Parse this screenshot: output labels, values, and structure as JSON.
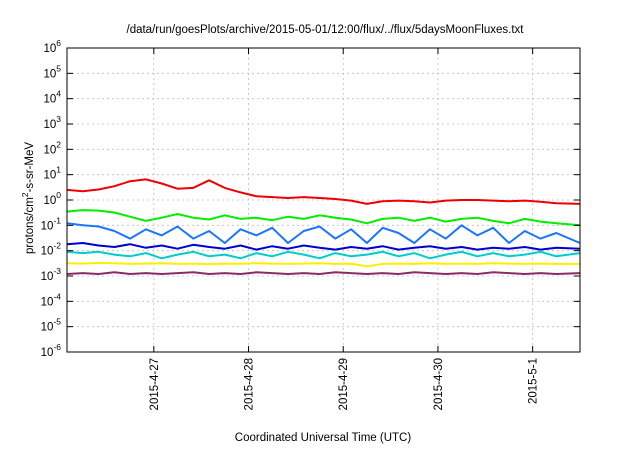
{
  "chart_data": {
    "type": "line",
    "title": "/data/run/goesPlots/archive/2015-05-01/12:00/flux/../flux/5daysMoonFluxes.txt",
    "xlabel": "Coordinated Universal Time (UTC)",
    "ylabel_parts": [
      "protons/cm",
      "2",
      "-s-sr-MeV"
    ],
    "y_scale": "log",
    "ylim": [
      1e-06,
      1000000.0
    ],
    "y_ticks": [
      {
        "base": "10",
        "exp": "-6"
      },
      {
        "base": "10",
        "exp": "-5"
      },
      {
        "base": "10",
        "exp": "-4"
      },
      {
        "base": "10",
        "exp": "-3"
      },
      {
        "base": "10",
        "exp": "-2"
      },
      {
        "base": "10",
        "exp": "-1"
      },
      {
        "base": "10",
        "exp": "0"
      },
      {
        "base": "10",
        "exp": "1"
      },
      {
        "base": "10",
        "exp": "2"
      },
      {
        "base": "10",
        "exp": "3"
      },
      {
        "base": "10",
        "exp": "4"
      },
      {
        "base": "10",
        "exp": "5"
      },
      {
        "base": "10",
        "exp": "6"
      }
    ],
    "x_range": [
      "2015-04-26 02:00",
      "2015-05-01 12:00"
    ],
    "x_ticks": [
      "2015-4-27",
      "2015-4-28",
      "2015-4-29",
      "2015-4-30",
      "2015-5-1"
    ],
    "grid": true,
    "series": [
      {
        "color": "#ee0000",
        "x": [
          "2015-04-26 02:00",
          "2015-04-26 06:00",
          "2015-04-26 10:00",
          "2015-04-26 14:00",
          "2015-04-26 18:00",
          "2015-04-26 22:00",
          "2015-04-27 02:00",
          "2015-04-27 06:00",
          "2015-04-27 10:00",
          "2015-04-27 14:00",
          "2015-04-27 18:00",
          "2015-04-27 22:00",
          "2015-04-28 02:00",
          "2015-04-28 06:00",
          "2015-04-28 10:00",
          "2015-04-28 14:00",
          "2015-04-28 18:00",
          "2015-04-28 22:00",
          "2015-04-29 02:00",
          "2015-04-29 06:00",
          "2015-04-29 10:00",
          "2015-04-29 14:00",
          "2015-04-29 18:00",
          "2015-04-29 22:00",
          "2015-04-30 02:00",
          "2015-04-30 06:00",
          "2015-04-30 10:00",
          "2015-04-30 14:00",
          "2015-04-30 18:00",
          "2015-04-30 22:00",
          "2015-05-01 02:00",
          "2015-05-01 06:00",
          "2015-05-01 12:00"
        ],
        "y": [
          2.5,
          2.2,
          2.6,
          3.5,
          5.5,
          6.5,
          4.5,
          2.8,
          3.0,
          6.0,
          3.0,
          2.0,
          1.4,
          1.3,
          1.2,
          1.3,
          1.2,
          1.1,
          0.95,
          0.7,
          0.9,
          0.95,
          0.9,
          0.8,
          0.95,
          1.0,
          1.0,
          0.95,
          0.9,
          0.95,
          0.85,
          0.75,
          0.7
        ]
      },
      {
        "color": "#00ee00",
        "x": [
          "2015-04-26 02:00",
          "2015-04-26 06:00",
          "2015-04-26 10:00",
          "2015-04-26 14:00",
          "2015-04-26 18:00",
          "2015-04-26 22:00",
          "2015-04-27 02:00",
          "2015-04-27 06:00",
          "2015-04-27 10:00",
          "2015-04-27 14:00",
          "2015-04-27 18:00",
          "2015-04-27 22:00",
          "2015-04-28 02:00",
          "2015-04-28 06:00",
          "2015-04-28 10:00",
          "2015-04-28 14:00",
          "2015-04-28 18:00",
          "2015-04-28 22:00",
          "2015-04-29 02:00",
          "2015-04-29 06:00",
          "2015-04-29 10:00",
          "2015-04-29 14:00",
          "2015-04-29 18:00",
          "2015-04-29 22:00",
          "2015-04-30 02:00",
          "2015-04-30 06:00",
          "2015-04-30 10:00",
          "2015-04-30 14:00",
          "2015-04-30 18:00",
          "2015-04-30 22:00",
          "2015-05-01 02:00",
          "2015-05-01 06:00",
          "2015-05-01 12:00"
        ],
        "y": [
          0.35,
          0.4,
          0.38,
          0.32,
          0.22,
          0.15,
          0.2,
          0.28,
          0.2,
          0.17,
          0.25,
          0.18,
          0.2,
          0.16,
          0.22,
          0.18,
          0.25,
          0.2,
          0.17,
          0.12,
          0.18,
          0.2,
          0.15,
          0.2,
          0.14,
          0.18,
          0.2,
          0.15,
          0.12,
          0.18,
          0.14,
          0.12,
          0.1
        ]
      },
      {
        "color": "#1a75ff",
        "x": [
          "2015-04-26 02:00",
          "2015-04-26 06:00",
          "2015-04-26 10:00",
          "2015-04-26 14:00",
          "2015-04-26 18:00",
          "2015-04-26 22:00",
          "2015-04-27 02:00",
          "2015-04-27 06:00",
          "2015-04-27 10:00",
          "2015-04-27 14:00",
          "2015-04-27 18:00",
          "2015-04-27 22:00",
          "2015-04-28 02:00",
          "2015-04-28 06:00",
          "2015-04-28 10:00",
          "2015-04-28 14:00",
          "2015-04-28 18:00",
          "2015-04-28 22:00",
          "2015-04-29 02:00",
          "2015-04-29 06:00",
          "2015-04-29 10:00",
          "2015-04-29 14:00",
          "2015-04-29 18:00",
          "2015-04-29 22:00",
          "2015-04-30 02:00",
          "2015-04-30 06:00",
          "2015-04-30 10:00",
          "2015-04-30 14:00",
          "2015-04-30 18:00",
          "2015-04-30 22:00",
          "2015-05-01 02:00",
          "2015-05-01 06:00",
          "2015-05-01 12:00"
        ],
        "y": [
          0.12,
          0.1,
          0.09,
          0.06,
          0.03,
          0.07,
          0.04,
          0.09,
          0.03,
          0.06,
          0.02,
          0.07,
          0.04,
          0.08,
          0.02,
          0.06,
          0.09,
          0.03,
          0.07,
          0.02,
          0.08,
          0.05,
          0.02,
          0.07,
          0.03,
          0.1,
          0.04,
          0.08,
          0.02,
          0.06,
          0.03,
          0.05,
          0.02
        ]
      },
      {
        "color": "#0000cc",
        "x": [
          "2015-04-26 02:00",
          "2015-04-26 06:00",
          "2015-04-26 10:00",
          "2015-04-26 14:00",
          "2015-04-26 18:00",
          "2015-04-26 22:00",
          "2015-04-27 02:00",
          "2015-04-27 06:00",
          "2015-04-27 10:00",
          "2015-04-27 14:00",
          "2015-04-27 18:00",
          "2015-04-27 22:00",
          "2015-04-28 02:00",
          "2015-04-28 06:00",
          "2015-04-28 10:00",
          "2015-04-28 14:00",
          "2015-04-28 18:00",
          "2015-04-28 22:00",
          "2015-04-29 02:00",
          "2015-04-29 06:00",
          "2015-04-29 10:00",
          "2015-04-29 14:00",
          "2015-04-29 18:00",
          "2015-04-29 22:00",
          "2015-04-30 02:00",
          "2015-04-30 06:00",
          "2015-04-30 10:00",
          "2015-04-30 14:00",
          "2015-04-30 18:00",
          "2015-04-30 22:00",
          "2015-05-01 02:00",
          "2015-05-01 06:00",
          "2015-05-01 12:00"
        ],
        "y": [
          0.018,
          0.02,
          0.016,
          0.014,
          0.018,
          0.013,
          0.016,
          0.012,
          0.017,
          0.014,
          0.012,
          0.016,
          0.011,
          0.015,
          0.012,
          0.016,
          0.013,
          0.011,
          0.014,
          0.012,
          0.015,
          0.011,
          0.013,
          0.015,
          0.012,
          0.014,
          0.011,
          0.013,
          0.012,
          0.014,
          0.011,
          0.013,
          0.012
        ]
      },
      {
        "color": "#00cccc",
        "x": [
          "2015-04-26 02:00",
          "2015-04-26 06:00",
          "2015-04-26 10:00",
          "2015-04-26 14:00",
          "2015-04-26 18:00",
          "2015-04-26 22:00",
          "2015-04-27 02:00",
          "2015-04-27 06:00",
          "2015-04-27 10:00",
          "2015-04-27 14:00",
          "2015-04-27 18:00",
          "2015-04-27 22:00",
          "2015-04-28 02:00",
          "2015-04-28 06:00",
          "2015-04-28 10:00",
          "2015-04-28 14:00",
          "2015-04-28 18:00",
          "2015-04-28 22:00",
          "2015-04-29 02:00",
          "2015-04-29 06:00",
          "2015-04-29 10:00",
          "2015-04-29 14:00",
          "2015-04-29 18:00",
          "2015-04-29 22:00",
          "2015-04-30 02:00",
          "2015-04-30 06:00",
          "2015-04-30 10:00",
          "2015-04-30 14:00",
          "2015-04-30 18:00",
          "2015-04-30 22:00",
          "2015-05-01 02:00",
          "2015-05-01 06:00",
          "2015-05-01 12:00"
        ],
        "y": [
          0.009,
          0.008,
          0.009,
          0.007,
          0.006,
          0.008,
          0.005,
          0.007,
          0.009,
          0.006,
          0.007,
          0.005,
          0.008,
          0.006,
          0.009,
          0.007,
          0.005,
          0.008,
          0.006,
          0.007,
          0.009,
          0.006,
          0.008,
          0.005,
          0.007,
          0.009,
          0.006,
          0.008,
          0.006,
          0.007,
          0.009,
          0.006,
          0.008
        ]
      },
      {
        "color": "#ffee00",
        "x": [
          "2015-04-26 02:00",
          "2015-04-26 06:00",
          "2015-04-26 10:00",
          "2015-04-26 14:00",
          "2015-04-26 18:00",
          "2015-04-26 22:00",
          "2015-04-27 02:00",
          "2015-04-27 06:00",
          "2015-04-27 10:00",
          "2015-04-27 14:00",
          "2015-04-27 18:00",
          "2015-04-27 22:00",
          "2015-04-28 02:00",
          "2015-04-28 06:00",
          "2015-04-28 10:00",
          "2015-04-28 14:00",
          "2015-04-28 18:00",
          "2015-04-28 22:00",
          "2015-04-29 02:00",
          "2015-04-29 06:00",
          "2015-04-29 10:00",
          "2015-04-29 14:00",
          "2015-04-29 18:00",
          "2015-04-29 22:00",
          "2015-04-30 02:00",
          "2015-04-30 06:00",
          "2015-04-30 10:00",
          "2015-04-30 14:00",
          "2015-04-30 18:00",
          "2015-04-30 22:00",
          "2015-05-01 02:00",
          "2015-05-01 06:00",
          "2015-05-01 12:00"
        ],
        "y": [
          0.0032,
          0.0031,
          0.0033,
          0.0032,
          0.003,
          0.0031,
          0.0032,
          0.003,
          0.0031,
          0.0029,
          0.0031,
          0.003,
          0.0032,
          0.0031,
          0.003,
          0.0031,
          0.0032,
          0.003,
          0.0031,
          0.0024,
          0.003,
          0.0031,
          0.003,
          0.0032,
          0.003,
          0.0031,
          0.003,
          0.0032,
          0.0031,
          0.003,
          0.0031,
          0.003,
          0.003
        ]
      },
      {
        "color": "#8b2a6b",
        "x": [
          "2015-04-26 02:00",
          "2015-04-26 06:00",
          "2015-04-26 10:00",
          "2015-04-26 14:00",
          "2015-04-26 18:00",
          "2015-04-26 22:00",
          "2015-04-27 02:00",
          "2015-04-27 06:00",
          "2015-04-27 10:00",
          "2015-04-27 14:00",
          "2015-04-27 18:00",
          "2015-04-27 22:00",
          "2015-04-28 02:00",
          "2015-04-28 06:00",
          "2015-04-28 10:00",
          "2015-04-28 14:00",
          "2015-04-28 18:00",
          "2015-04-28 22:00",
          "2015-04-29 02:00",
          "2015-04-29 06:00",
          "2015-04-29 10:00",
          "2015-04-29 14:00",
          "2015-04-29 18:00",
          "2015-04-29 22:00",
          "2015-04-30 02:00",
          "2015-04-30 06:00",
          "2015-04-30 10:00",
          "2015-04-30 14:00",
          "2015-04-30 18:00",
          "2015-04-30 22:00",
          "2015-05-01 02:00",
          "2015-05-01 06:00",
          "2015-05-01 12:00"
        ],
        "y": [
          0.0012,
          0.0013,
          0.0012,
          0.0014,
          0.0012,
          0.0013,
          0.0012,
          0.0013,
          0.0014,
          0.0012,
          0.0013,
          0.0012,
          0.0014,
          0.0013,
          0.0012,
          0.0013,
          0.0012,
          0.0014,
          0.0013,
          0.0012,
          0.0013,
          0.0012,
          0.0014,
          0.0013,
          0.0012,
          0.0013,
          0.0012,
          0.0014,
          0.0013,
          0.0012,
          0.0013,
          0.0012,
          0.0013
        ]
      }
    ]
  }
}
